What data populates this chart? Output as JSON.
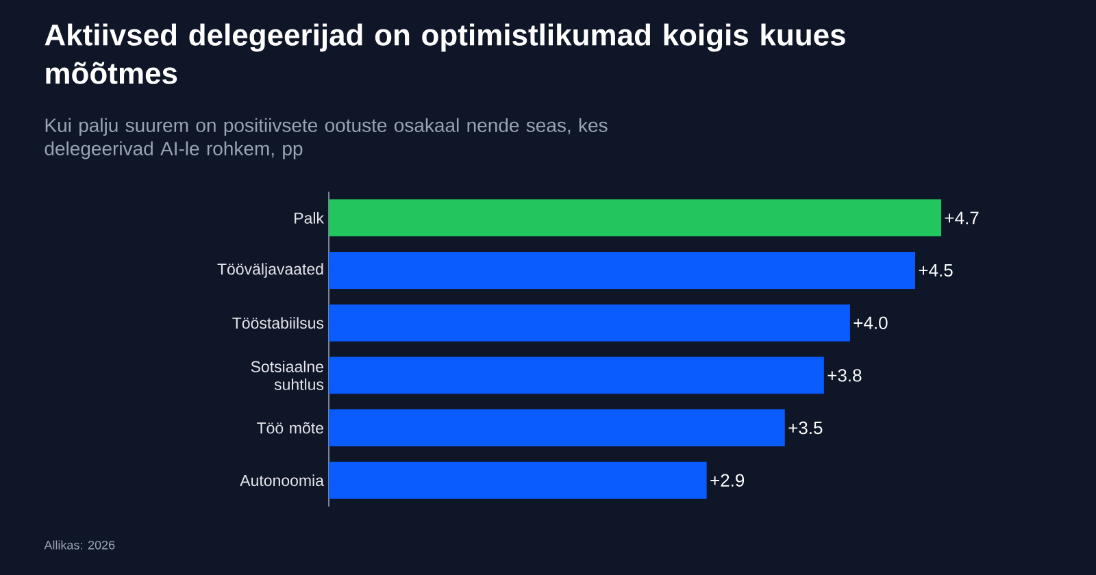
{
  "chart_data": {
    "type": "bar",
    "orientation": "horizontal",
    "title": "Aktiivsed delegeerijad on optimistlikumad koigis kuues mõõtmes",
    "subtitle": "Kui palju suurem on positiivsete ootuste osakaal nende seas, kes delegeerivad AI-le rohkem, pp",
    "categories": [
      "Palk",
      "Tööväljavaated",
      "Tööstabiilsus",
      "Sotsiaalne suhtlus",
      "Töö mõte",
      "Autonoomia"
    ],
    "values": [
      4.7,
      4.5,
      4.0,
      3.8,
      3.5,
      2.9
    ],
    "value_labels": [
      "+4.7",
      "+4.5",
      "+4.0",
      "+3.8",
      "+3.5",
      "+2.9"
    ],
    "colors": [
      "#22c55e",
      "#0b5cff",
      "#0b5cff",
      "#0b5cff",
      "#0b5cff",
      "#0b5cff"
    ],
    "annotations": [
      "Allikas: 2026"
    ]
  }
}
